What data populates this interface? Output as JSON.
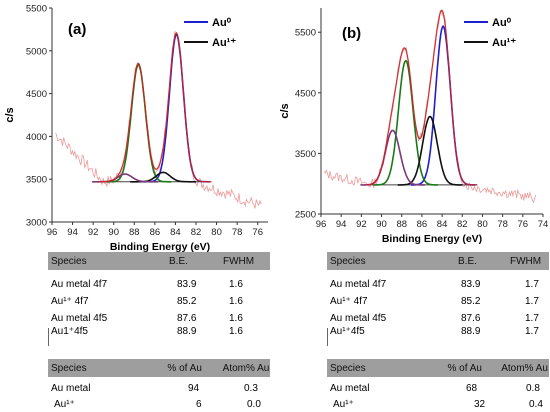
{
  "chart_data": [
    {
      "type": "line",
      "panel_label": "(a)",
      "xlabel": "Binding Energy (eV)",
      "ylabel": "c/s",
      "xlim": [
        96,
        75
      ],
      "ylim": [
        3000,
        5500
      ],
      "xticks": [
        96,
        94,
        92,
        90,
        88,
        86,
        84,
        82,
        80,
        78,
        76
      ],
      "yticks": [
        3000,
        3500,
        4000,
        4500,
        5000,
        5500
      ],
      "legend": [
        {
          "name": "Au⁰",
          "color": "#1f1fd0"
        },
        {
          "name": "Au¹⁺",
          "color": "#111111"
        }
      ],
      "legend_position": "top-right",
      "background": 3470,
      "peaks": [
        {
          "species": "Au metal 4f7",
          "center": 83.9,
          "height": 1720,
          "fwhm": 1.6,
          "color": "#1f1fd0"
        },
        {
          "species": "Au metal 4f5",
          "center": 87.6,
          "height": 1370,
          "fwhm": 1.6,
          "color": "#1a7a1a"
        },
        {
          "species": "Au1+ 4f7",
          "center": 85.2,
          "height": 110,
          "fwhm": 1.6,
          "color": "#111111"
        },
        {
          "species": "Au1+ 4f5",
          "center": 88.9,
          "height": 90,
          "fwhm": 1.6,
          "color": "#7a3a7a"
        }
      ]
    },
    {
      "type": "line",
      "panel_label": "(b)",
      "xlabel": "Binding Energy (eV)",
      "ylabel": "c/s",
      "xlim": [
        96,
        74
      ],
      "ylim": [
        2500,
        5900
      ],
      "xticks": [
        96,
        94,
        92,
        90,
        88,
        86,
        84,
        82,
        80,
        78,
        76,
        74
      ],
      "yticks": [
        2500,
        3500,
        4500,
        5500
      ],
      "legend": [
        {
          "name": "Au⁰",
          "color": "#1f1fd0"
        },
        {
          "name": "Au¹⁺",
          "color": "#111111"
        }
      ],
      "legend_position": "top-right",
      "background": 2980,
      "peaks": [
        {
          "species": "Au metal 4f7",
          "center": 83.9,
          "height": 2620,
          "fwhm": 1.7,
          "color": "#1f1fd0"
        },
        {
          "species": "Au metal 4f5",
          "center": 87.6,
          "height": 2050,
          "fwhm": 1.7,
          "color": "#1a7a1a"
        },
        {
          "species": "Au1+ 4f7",
          "center": 85.2,
          "height": 1130,
          "fwhm": 1.7,
          "color": "#111111"
        },
        {
          "species": "Au1+ 4f5",
          "center": 88.9,
          "height": 900,
          "fwhm": 1.7,
          "color": "#7a3a7a"
        }
      ]
    }
  ],
  "tables": [
    {
      "header": [
        "Species",
        "B.E.",
        "FWHM"
      ],
      "rows": [
        [
          "Au metal 4f7",
          "83.9",
          "1.6"
        ],
        [
          "Au¹⁺ 4f7",
          "85.2",
          "1.6"
        ],
        [
          "Au metal 4f5",
          "87.6",
          "1.6"
        ],
        [
          "Au1⁺4f5",
          "88.9",
          "1.6"
        ]
      ],
      "header2": [
        "Species",
        "% of Au",
        "Atom% Au"
      ],
      "rows2": [
        [
          "Au metal",
          "94",
          "0.3"
        ],
        [
          "Au¹⁺",
          "6",
          "0.0"
        ]
      ]
    },
    {
      "header": [
        "Species",
        "B.E.",
        "FWHM"
      ],
      "rows": [
        [
          "Au metal 4f7",
          "83.9",
          "1.7"
        ],
        [
          "Au¹⁺ 4f7",
          "85.2",
          "1.7"
        ],
        [
          "Au metal 4f5",
          "87.6",
          "1.7"
        ],
        [
          "Au¹⁺4f5",
          "88.9",
          "1.7"
        ]
      ],
      "header2": [
        "Species",
        "% of Au",
        "Atom% Au"
      ],
      "rows2": [
        [
          "Au metal",
          "68",
          "0.8"
        ],
        [
          "Au¹⁺",
          "32",
          "0.4"
        ]
      ]
    }
  ],
  "colors": {
    "envelope": "#cc2222",
    "raw": "#e88888",
    "background": "#444444",
    "table_header": "#9e9e9e"
  }
}
